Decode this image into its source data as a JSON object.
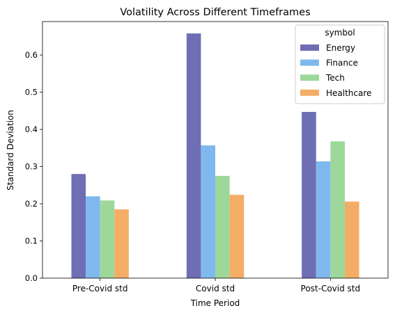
{
  "chart_data": {
    "type": "bar",
    "title": "Volatility Across Different Timeframes",
    "xlabel": "Time Period",
    "ylabel": "Standard Deviation",
    "categories": [
      "Pre-Covid std",
      "Covid std",
      "Post-Covid std"
    ],
    "ylim": [
      0,
      0.69
    ],
    "yticks": [
      0.0,
      0.1,
      0.2,
      0.3,
      0.4,
      0.5,
      0.6
    ],
    "ytick_labels": [
      "0.0",
      "0.1",
      "0.2",
      "0.3",
      "0.4",
      "0.5",
      "0.6"
    ],
    "legend": {
      "title": "symbol",
      "placement": "top-right"
    },
    "series": [
      {
        "name": "Energy",
        "color": "#6e6eb4",
        "values": [
          0.28,
          0.658,
          0.447
        ]
      },
      {
        "name": "Finance",
        "color": "#7fb8ee",
        "values": [
          0.22,
          0.357,
          0.314
        ]
      },
      {
        "name": "Tech",
        "color": "#9dd89a",
        "values": [
          0.209,
          0.275,
          0.368
        ]
      },
      {
        "name": "Healthcare",
        "color": "#f4ad66",
        "values": [
          0.185,
          0.224,
          0.206
        ]
      }
    ]
  }
}
